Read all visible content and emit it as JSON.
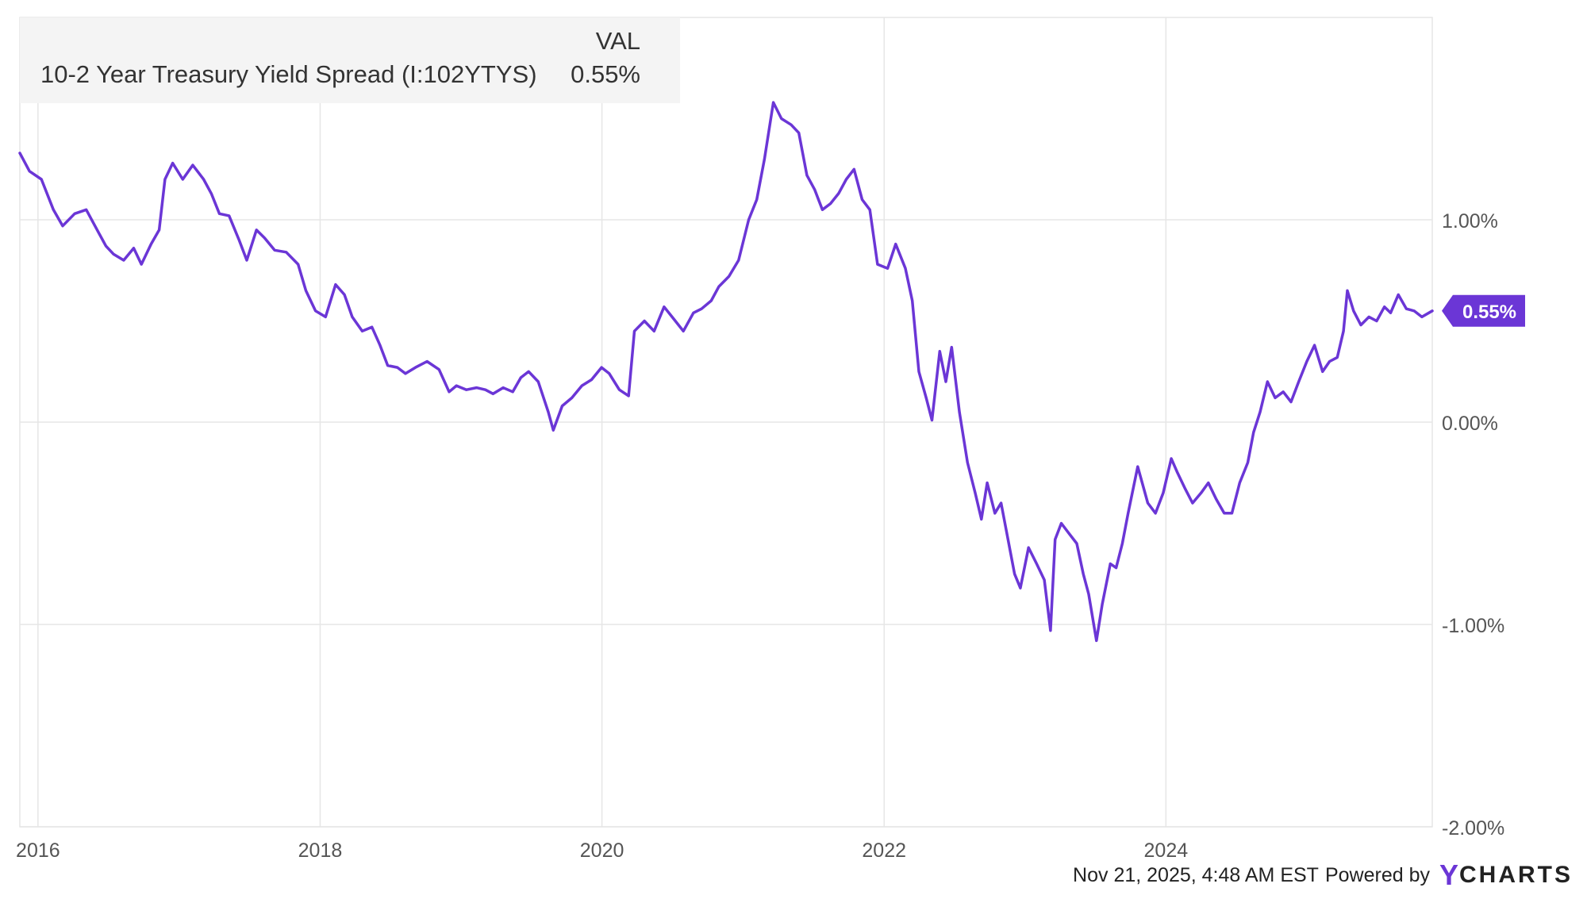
{
  "legend": {
    "header": "VAL",
    "series_name": "10-2 Year Treasury Yield Spread (I:102YTYS)",
    "series_value": "0.55%"
  },
  "footer": {
    "timestamp_text": "Nov 21, 2025, 4:48 AM EST",
    "powered_by": "Powered by",
    "brand_y": "Y",
    "brand_rest": "CHARTS"
  },
  "colors": {
    "line": "#6b36d6",
    "grid": "#e6e6e6",
    "axis_text": "#555555"
  },
  "chart_data": {
    "type": "line",
    "title": "",
    "xlabel": "",
    "ylabel": "",
    "x_tick_labels": [
      "2016",
      "2018",
      "2020",
      "2022",
      "2024"
    ],
    "y_tick_labels": [
      "1.00%",
      "0.00%",
      "-1.00%",
      "-2.00%"
    ],
    "y_ticks": [
      1,
      0,
      -1,
      -2
    ],
    "ylim": [
      -2.0,
      2.0
    ],
    "xlim": [
      "2015-11-15",
      "2025-11-21"
    ],
    "grid": true,
    "legend_position": "top-left",
    "last_value_label": "0.55%",
    "last_value": 0.55,
    "series": [
      {
        "name": "10-2 Year Treasury Yield Spread (I:102YTYS)",
        "points": [
          [
            "2015-11-15",
            1.33
          ],
          [
            "2015-12-10",
            1.24
          ],
          [
            "2016-01-10",
            1.2
          ],
          [
            "2016-02-10",
            1.05
          ],
          [
            "2016-03-05",
            0.97
          ],
          [
            "2016-04-05",
            1.03
          ],
          [
            "2016-05-05",
            1.05
          ],
          [
            "2016-06-05",
            0.94
          ],
          [
            "2016-06-25",
            0.87
          ],
          [
            "2016-07-15",
            0.83
          ],
          [
            "2016-08-10",
            0.8
          ],
          [
            "2016-09-05",
            0.86
          ],
          [
            "2016-09-25",
            0.78
          ],
          [
            "2016-10-20",
            0.88
          ],
          [
            "2016-11-10",
            0.95
          ],
          [
            "2016-11-25",
            1.2
          ],
          [
            "2016-12-15",
            1.28
          ],
          [
            "2017-01-10",
            1.2
          ],
          [
            "2017-02-05",
            1.27
          ],
          [
            "2017-03-05",
            1.2
          ],
          [
            "2017-03-25",
            1.13
          ],
          [
            "2017-04-15",
            1.03
          ],
          [
            "2017-05-10",
            1.02
          ],
          [
            "2017-06-05",
            0.9
          ],
          [
            "2017-06-25",
            0.8
          ],
          [
            "2017-07-20",
            0.95
          ],
          [
            "2017-08-10",
            0.91
          ],
          [
            "2017-09-05",
            0.85
          ],
          [
            "2017-10-05",
            0.84
          ],
          [
            "2017-11-05",
            0.78
          ],
          [
            "2017-11-25",
            0.65
          ],
          [
            "2017-12-20",
            0.55
          ],
          [
            "2018-01-15",
            0.52
          ],
          [
            "2018-02-10",
            0.68
          ],
          [
            "2018-03-05",
            0.63
          ],
          [
            "2018-03-25",
            0.52
          ],
          [
            "2018-04-20",
            0.45
          ],
          [
            "2018-05-15",
            0.47
          ],
          [
            "2018-06-05",
            0.38
          ],
          [
            "2018-06-25",
            0.28
          ],
          [
            "2018-07-20",
            0.27
          ],
          [
            "2018-08-10",
            0.24
          ],
          [
            "2018-09-05",
            0.27
          ],
          [
            "2018-10-05",
            0.3
          ],
          [
            "2018-11-05",
            0.26
          ],
          [
            "2018-12-01",
            0.15
          ],
          [
            "2018-12-20",
            0.18
          ],
          [
            "2019-01-15",
            0.16
          ],
          [
            "2019-02-10",
            0.17
          ],
          [
            "2019-03-05",
            0.16
          ],
          [
            "2019-03-25",
            0.14
          ],
          [
            "2019-04-20",
            0.17
          ],
          [
            "2019-05-15",
            0.15
          ],
          [
            "2019-06-05",
            0.22
          ],
          [
            "2019-06-25",
            0.25
          ],
          [
            "2019-07-20",
            0.2
          ],
          [
            "2019-08-15",
            0.05
          ],
          [
            "2019-08-28",
            -0.04
          ],
          [
            "2019-09-20",
            0.08
          ],
          [
            "2019-10-15",
            0.12
          ],
          [
            "2019-11-10",
            0.18
          ],
          [
            "2019-12-05",
            0.21
          ],
          [
            "2019-12-31",
            0.27
          ],
          [
            "2020-01-20",
            0.24
          ],
          [
            "2020-02-15",
            0.16
          ],
          [
            "2020-03-10",
            0.13
          ],
          [
            "2020-03-25",
            0.45
          ],
          [
            "2020-04-20",
            0.5
          ],
          [
            "2020-05-15",
            0.45
          ],
          [
            "2020-06-10",
            0.57
          ],
          [
            "2020-07-05",
            0.51
          ],
          [
            "2020-07-30",
            0.45
          ],
          [
            "2020-08-25",
            0.54
          ],
          [
            "2020-09-15",
            0.56
          ],
          [
            "2020-10-10",
            0.6
          ],
          [
            "2020-10-30",
            0.67
          ],
          [
            "2020-11-25",
            0.72
          ],
          [
            "2020-12-20",
            0.8
          ],
          [
            "2021-01-15",
            1.0
          ],
          [
            "2021-02-05",
            1.1
          ],
          [
            "2021-02-25",
            1.3
          ],
          [
            "2021-03-20",
            1.58
          ],
          [
            "2021-04-10",
            1.5
          ],
          [
            "2021-05-05",
            1.47
          ],
          [
            "2021-05-25",
            1.43
          ],
          [
            "2021-06-15",
            1.22
          ],
          [
            "2021-07-05",
            1.15
          ],
          [
            "2021-07-25",
            1.05
          ],
          [
            "2021-08-15",
            1.08
          ],
          [
            "2021-09-05",
            1.13
          ],
          [
            "2021-09-25",
            1.2
          ],
          [
            "2021-10-15",
            1.25
          ],
          [
            "2021-11-05",
            1.1
          ],
          [
            "2021-11-25",
            1.05
          ],
          [
            "2021-12-15",
            0.78
          ],
          [
            "2022-01-10",
            0.76
          ],
          [
            "2022-01-31",
            0.88
          ],
          [
            "2022-02-25",
            0.76
          ],
          [
            "2022-03-15",
            0.6
          ],
          [
            "2022-04-01",
            0.25
          ],
          [
            "2022-04-20",
            0.12
          ],
          [
            "2022-05-05",
            0.01
          ],
          [
            "2022-05-25",
            0.35
          ],
          [
            "2022-06-10",
            0.2
          ],
          [
            "2022-06-25",
            0.37
          ],
          [
            "2022-07-15",
            0.05
          ],
          [
            "2022-08-05",
            -0.2
          ],
          [
            "2022-08-25",
            -0.35
          ],
          [
            "2022-09-10",
            -0.48
          ],
          [
            "2022-09-25",
            -0.3
          ],
          [
            "2022-10-15",
            -0.45
          ],
          [
            "2022-10-31",
            -0.4
          ],
          [
            "2022-11-15",
            -0.55
          ],
          [
            "2022-12-05",
            -0.75
          ],
          [
            "2022-12-20",
            -0.82
          ],
          [
            "2023-01-10",
            -0.62
          ],
          [
            "2023-01-31",
            -0.7
          ],
          [
            "2023-02-20",
            -0.78
          ],
          [
            "2023-03-08",
            -1.03
          ],
          [
            "2023-03-20",
            -0.58
          ],
          [
            "2023-04-05",
            -0.5
          ],
          [
            "2023-04-25",
            -0.55
          ],
          [
            "2023-05-15",
            -0.6
          ],
          [
            "2023-06-01",
            -0.75
          ],
          [
            "2023-06-15",
            -0.85
          ],
          [
            "2023-07-05",
            -1.08
          ],
          [
            "2023-07-20",
            -0.9
          ],
          [
            "2023-08-10",
            -0.7
          ],
          [
            "2023-08-25",
            -0.72
          ],
          [
            "2023-09-10",
            -0.6
          ],
          [
            "2023-09-25",
            -0.45
          ],
          [
            "2023-10-20",
            -0.22
          ],
          [
            "2023-11-15",
            -0.4
          ],
          [
            "2023-12-05",
            -0.45
          ],
          [
            "2023-12-25",
            -0.35
          ],
          [
            "2024-01-15",
            -0.18
          ],
          [
            "2024-01-31",
            -0.25
          ],
          [
            "2024-02-20",
            -0.33
          ],
          [
            "2024-03-10",
            -0.4
          ],
          [
            "2024-04-01",
            -0.35
          ],
          [
            "2024-04-20",
            -0.3
          ],
          [
            "2024-05-10",
            -0.38
          ],
          [
            "2024-05-31",
            -0.45
          ],
          [
            "2024-06-20",
            -0.45
          ],
          [
            "2024-07-10",
            -0.3
          ],
          [
            "2024-07-31",
            -0.2
          ],
          [
            "2024-08-15",
            -0.05
          ],
          [
            "2024-09-01",
            0.05
          ],
          [
            "2024-09-20",
            0.2
          ],
          [
            "2024-10-10",
            0.12
          ],
          [
            "2024-10-31",
            0.15
          ],
          [
            "2024-11-20",
            0.1
          ],
          [
            "2024-12-10",
            0.2
          ],
          [
            "2024-12-31",
            0.3
          ],
          [
            "2025-01-20",
            0.38
          ],
          [
            "2025-02-10",
            0.25
          ],
          [
            "2025-02-28",
            0.3
          ],
          [
            "2025-03-20",
            0.32
          ],
          [
            "2025-04-05",
            0.45
          ],
          [
            "2025-04-15",
            0.65
          ],
          [
            "2025-05-01",
            0.55
          ],
          [
            "2025-05-20",
            0.48
          ],
          [
            "2025-06-10",
            0.52
          ],
          [
            "2025-06-30",
            0.5
          ],
          [
            "2025-07-20",
            0.57
          ],
          [
            "2025-08-05",
            0.54
          ],
          [
            "2025-08-25",
            0.63
          ],
          [
            "2025-09-15",
            0.56
          ],
          [
            "2025-10-05",
            0.55
          ],
          [
            "2025-10-25",
            0.52
          ],
          [
            "2025-11-21",
            0.55
          ]
        ]
      }
    ]
  }
}
